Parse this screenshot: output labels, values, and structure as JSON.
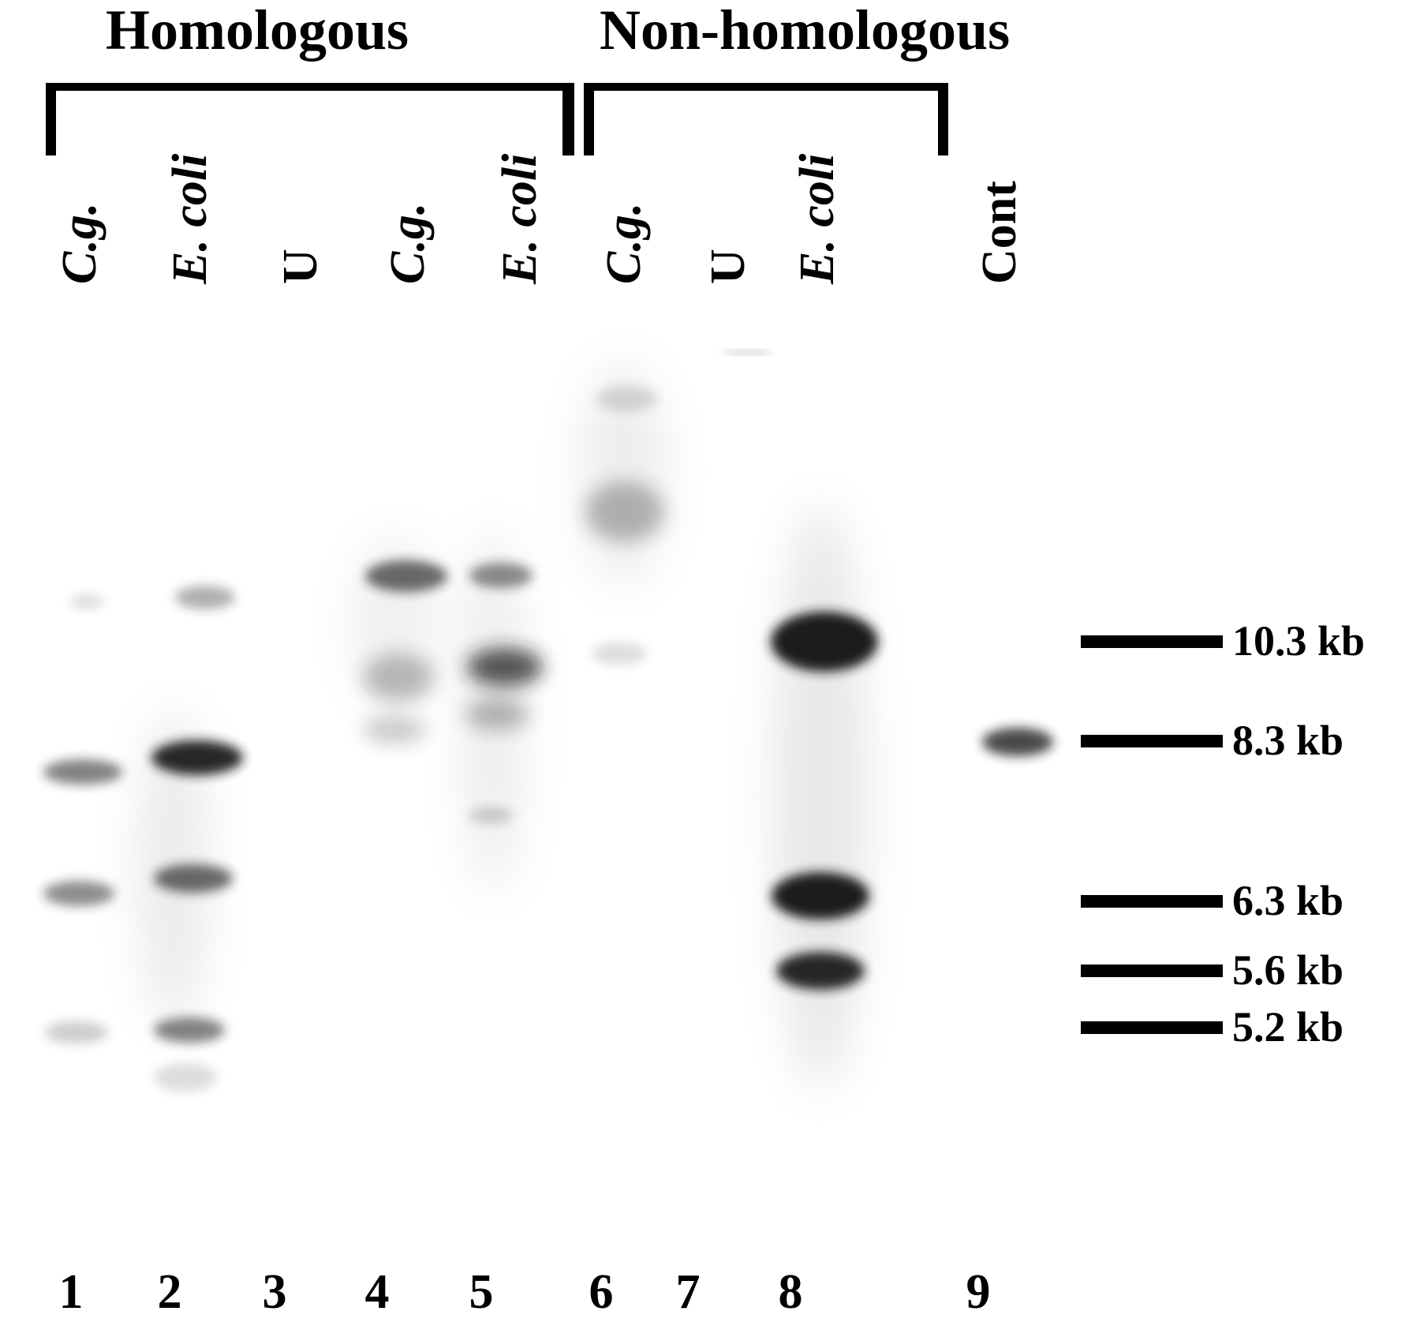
{
  "groups": {
    "homologous": "Homologous",
    "non_homologous": "Non-homologous"
  },
  "lanes": [
    {
      "number": "1",
      "label": "C.g."
    },
    {
      "number": "2",
      "label": "E. coli"
    },
    {
      "number": "3",
      "label": "U"
    },
    {
      "number": "4",
      "label": "C.g."
    },
    {
      "number": "5",
      "label": "E. coli"
    },
    {
      "number": "6",
      "label": "C.g."
    },
    {
      "number": "7",
      "label": "U"
    },
    {
      "number": "8",
      "label": "E. coli"
    },
    {
      "number": "9",
      "label": "Cont"
    }
  ],
  "markers": [
    "10.3 kb",
    "8.3 kb",
    "6.3 kb",
    "5.6 kb",
    "5.2 kb"
  ],
  "colors": {
    "background": "#ffffff",
    "ink": "#000000",
    "band": "#1a1a1a"
  }
}
